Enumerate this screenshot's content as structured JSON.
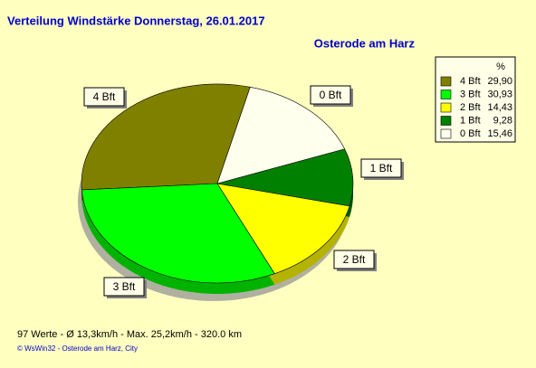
{
  "chart_data": {
    "type": "pie",
    "title": "Verteilung Windstärke  Donnerstag, 26.01.2017",
    "subtitle": "Osterode am Harz",
    "legend_title": "%",
    "categories": [
      "4 Bft",
      "3 Bft",
      "2 Bft",
      "1 Bft",
      "0 Bft"
    ],
    "values": [
      29.9,
      30.93,
      14.43,
      9.28,
      15.46
    ],
    "value_labels": [
      "29,90",
      "30,93",
      "14,43",
      "9,28",
      "15,46"
    ],
    "colors": [
      "#808000",
      "#00ff00",
      "#ffff00",
      "#008000",
      "#ffffee"
    ],
    "footer": "97 Werte   -   Ø 13,3km/h   -   Max. 25,2km/h   -   320.0 km",
    "copyright": "© WsWin32   -   Osterode am Harz, City"
  }
}
